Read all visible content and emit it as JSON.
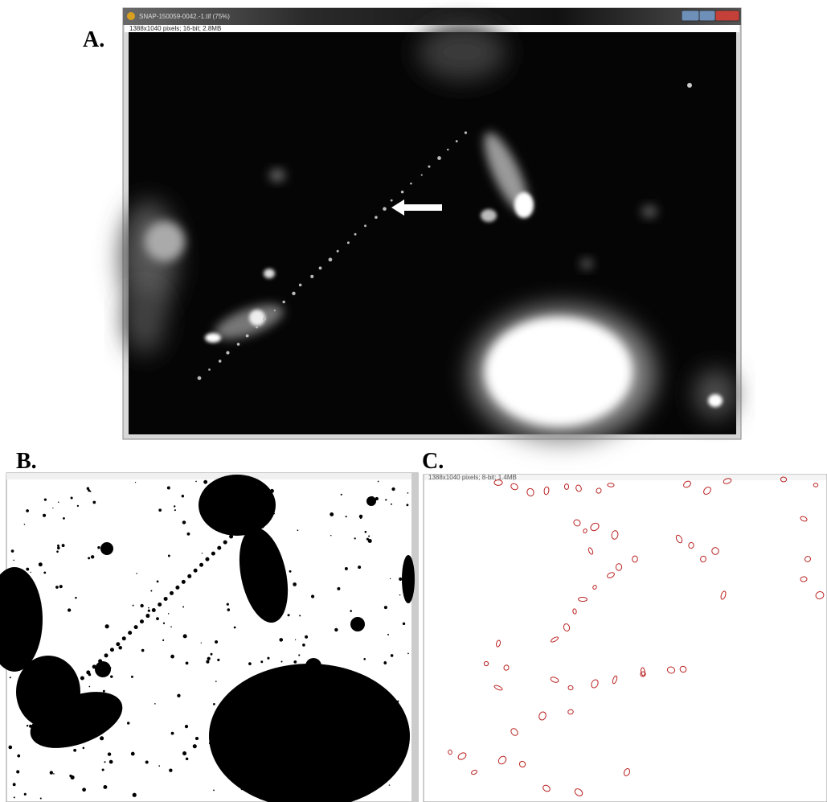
{
  "panels": [
    {
      "label": "A.",
      "window_title": "SNAP-150059-0042.-1.tif (75%)",
      "info": "1388x1040 pixels; 16-bit; 2.8MB"
    },
    {
      "label": "B."
    },
    {
      "label": "C.",
      "info": "1388x1040 pixels; 8-bit; 1.4MB"
    }
  ]
}
